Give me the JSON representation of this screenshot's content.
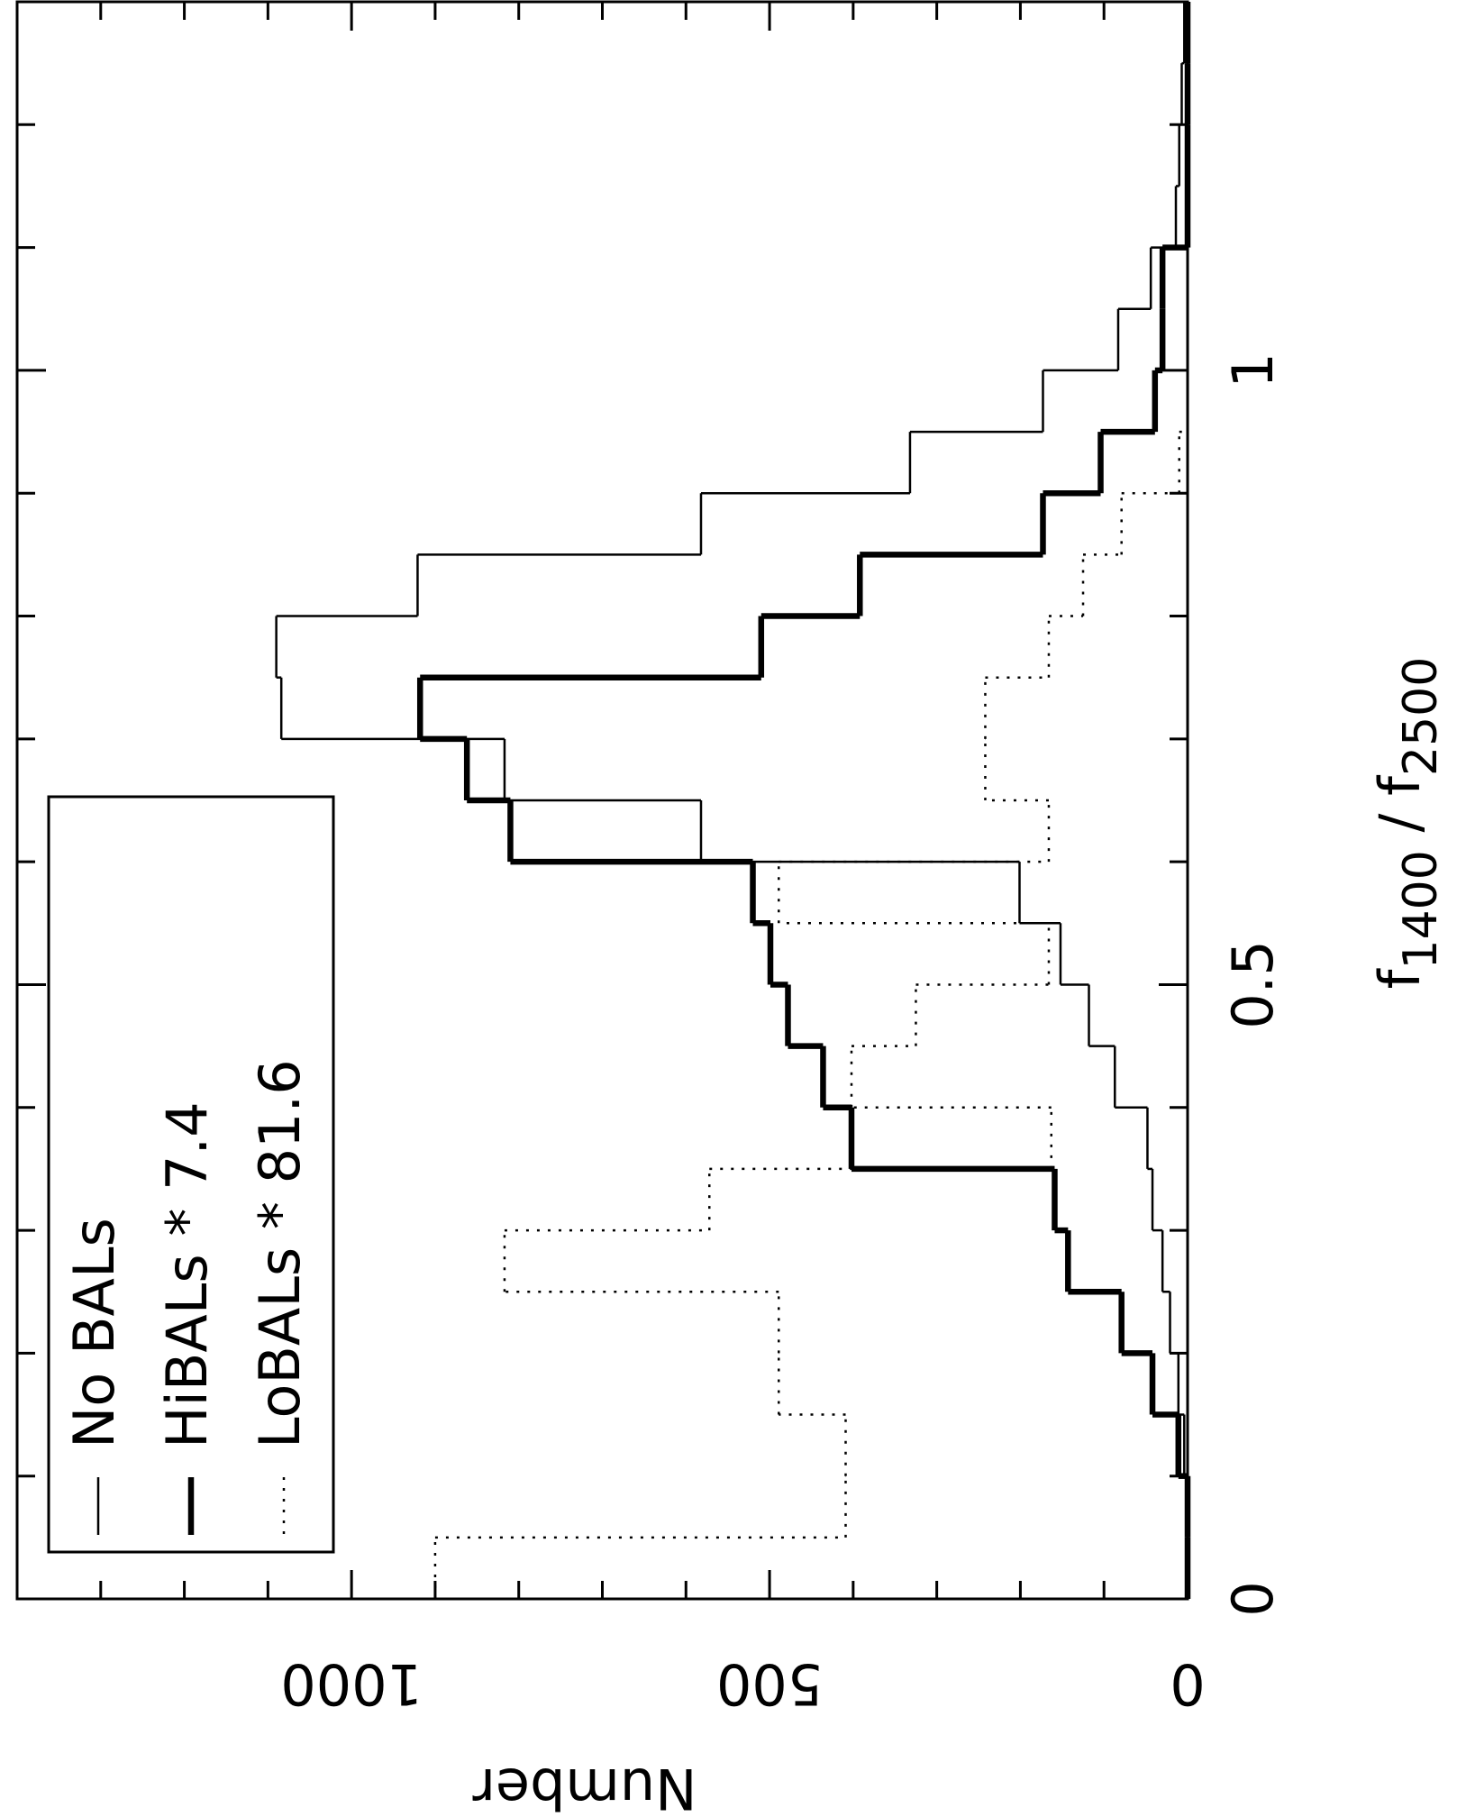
{
  "chart_data": {
    "type": "histogram",
    "xlabel": [
      "f",
      "1400",
      " / f",
      "2500"
    ],
    "ylabel": "Number",
    "bins": [
      0,
      0.05,
      0.1,
      0.15,
      0.2,
      0.25,
      0.3,
      0.35,
      0.4,
      0.45,
      0.5,
      0.55,
      0.6,
      0.65,
      0.7,
      0.75,
      0.8,
      0.85,
      0.9,
      0.95,
      1,
      1.05,
      1.1,
      1.15,
      1.2,
      1.25,
      1.3
    ],
    "series": [
      {
        "name": "No BALs",
        "color": "#000000",
        "linestyle": "thin",
        "values": [
          0,
          0,
          4,
          11,
          21,
          30,
          42,
          48,
          87,
          118,
          152,
          201,
          582,
          817,
          1084,
          1090,
          921,
          582,
          332,
          173,
          83,
          44,
          14,
          10,
          7,
          4
        ]
      },
      {
        "name": "HiBALs * 7.4",
        "color": "#000000",
        "linestyle": "thick",
        "values": [
          0,
          0,
          11,
          42,
          79,
          143,
          159,
          402,
          436,
          478,
          499,
          520,
          810,
          862,
          918,
          510,
          392,
          173,
          104,
          39,
          30,
          30,
          0,
          0,
          0,
          0
        ]
      },
      {
        "name": "LoBALs * 81.6",
        "color": "#000000",
        "linestyle": "dotted",
        "values": [
          900,
          409,
          409,
          489,
          489,
          817,
          572,
          163,
          402,
          325,
          166,
          489,
          166,
          242,
          242,
          166,
          125,
          79,
          10,
          0,
          0,
          0,
          0,
          0,
          0,
          0
        ]
      }
    ],
    "xlim": [
      0,
      1.3
    ],
    "xticks": [
      0,
      0.5,
      1
    ],
    "xminorticks": [
      0.1,
      0.2,
      0.3,
      0.4,
      0.6,
      0.7,
      0.8,
      0.9,
      1.1,
      1.2
    ],
    "ylim": [
      0,
      1400
    ],
    "yticks": [
      0,
      500,
      1000
    ],
    "yminorticks": [
      100,
      200,
      300,
      400,
      600,
      700,
      800,
      900,
      1100,
      1200,
      1300
    ]
  }
}
